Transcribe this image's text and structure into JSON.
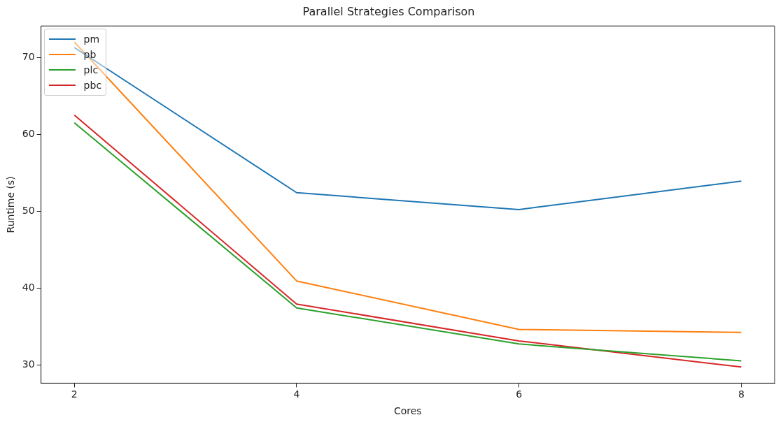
{
  "chart_data": {
    "type": "line",
    "title": "Parallel Strategies Comparison",
    "xlabel": "Cores",
    "ylabel": "Runtime (s)",
    "x": [
      2,
      4,
      6,
      8
    ],
    "series": [
      {
        "name": "pm",
        "color": "#1f77b4",
        "values": [
          71.3,
          52.4,
          50.2,
          53.9
        ]
      },
      {
        "name": "pb",
        "color": "#ff7f0e",
        "values": [
          72.0,
          40.9,
          34.6,
          34.2
        ]
      },
      {
        "name": "plc",
        "color": "#2ca02c",
        "values": [
          61.5,
          37.4,
          32.7,
          30.5
        ]
      },
      {
        "name": "pbc",
        "color": "#d62728",
        "values": [
          62.5,
          37.9,
          33.1,
          29.7
        ]
      }
    ],
    "xlim": [
      1.7,
      8.3
    ],
    "xticks": [
      2,
      4,
      6,
      8
    ],
    "ylim": [
      27.6,
      74.1
    ],
    "yticks": [
      30,
      40,
      50,
      60,
      70
    ],
    "grid": false,
    "legend": "top left",
    "marker": "none",
    "line_style": "solid"
  }
}
